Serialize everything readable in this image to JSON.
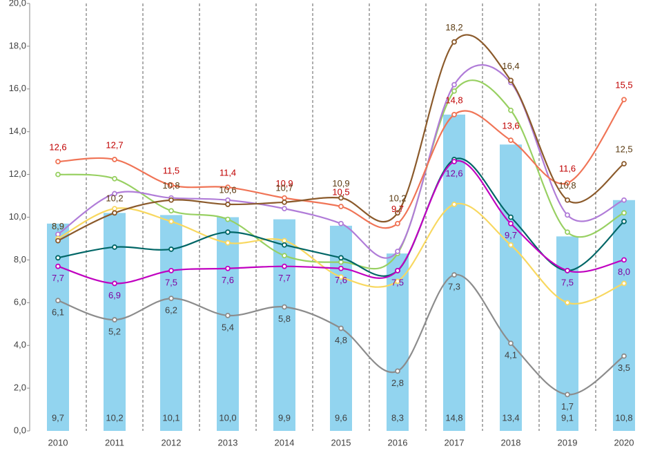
{
  "chart_data": {
    "type": "combo",
    "categories": [
      "2010",
      "2011",
      "2012",
      "2013",
      "2014",
      "2015",
      "2016",
      "2017",
      "2018",
      "2019",
      "2020"
    ],
    "ylim": [
      0,
      20
    ],
    "yticks": [
      {
        "value": 0,
        "label": "0,0"
      },
      {
        "value": 2,
        "label": "2,0"
      },
      {
        "value": 4,
        "label": "4,0"
      },
      {
        "value": 6,
        "label": "6,0"
      },
      {
        "value": 8,
        "label": "8,0"
      },
      {
        "value": 10,
        "label": "10,0"
      },
      {
        "value": 12,
        "label": "12,0"
      },
      {
        "value": 14,
        "label": "14,0"
      },
      {
        "value": 16,
        "label": "16,0"
      },
      {
        "value": 18,
        "label": "18,0"
      },
      {
        "value": 20,
        "label": "20,0"
      }
    ],
    "series": [
      {
        "type": "bar",
        "color": "#92d4ef",
        "label_color": "#404040",
        "values": [
          9.7,
          10.2,
          10.1,
          10.0,
          9.9,
          9.6,
          8.3,
          14.8,
          13.4,
          9.1,
          10.8
        ],
        "value_labels": [
          "9,7",
          "10,2",
          "10,1",
          "10,0",
          "9,9",
          "9,6",
          "8,3",
          "14,8",
          "13,4",
          "9,1",
          "10,8"
        ]
      },
      {
        "type": "line",
        "color": "#98d062",
        "values": [
          12.0,
          11.8,
          10.3,
          9.9,
          8.2,
          7.9,
          8.3,
          15.9,
          15.0,
          9.3,
          10.2
        ]
      },
      {
        "type": "line",
        "color": "#b07cd8",
        "values": [
          9.2,
          11.1,
          10.9,
          10.8,
          10.4,
          9.7,
          8.4,
          16.2,
          16.3,
          10.1,
          10.8
        ]
      },
      {
        "type": "line",
        "color": "#f8d860",
        "values": [
          9.0,
          10.4,
          9.8,
          8.8,
          8.9,
          7.2,
          7.0,
          10.6,
          8.7,
          6.0,
          6.9
        ]
      },
      {
        "type": "line",
        "color": "#006666",
        "values": [
          8.1,
          8.6,
          8.5,
          9.3,
          8.7,
          8.1,
          7.5,
          12.7,
          10.0,
          7.5,
          9.8
        ]
      },
      {
        "type": "line",
        "color": "#f07456",
        "label_color": "#c00000",
        "label_pos": "above",
        "values": [
          12.6,
          12.7,
          11.5,
          11.4,
          10.9,
          10.5,
          9.7,
          14.8,
          13.6,
          11.6,
          15.5
        ],
        "value_labels": [
          "12,6",
          "12,7",
          "11,5",
          "11,4",
          "10,9",
          "10,5",
          "9,7",
          "14,8",
          "13,6",
          "11,6",
          "15,5"
        ]
      },
      {
        "type": "line",
        "color": "#8b5a2b",
        "label_color": "#5a3a10",
        "label_pos": "above",
        "values": [
          8.9,
          10.2,
          10.8,
          10.6,
          10.7,
          10.9,
          10.2,
          18.2,
          16.4,
          10.8,
          12.5
        ],
        "value_labels": [
          "8,9",
          "10,2",
          "10,8",
          "10,6",
          "10,7",
          "10,9",
          "10,2",
          "18,2",
          "16,4",
          "10,8",
          "12,5"
        ]
      },
      {
        "type": "line",
        "color": "#c000c0",
        "label_color": "#8000a0",
        "label_pos": "below",
        "values": [
          7.7,
          6.9,
          7.5,
          7.6,
          7.7,
          7.6,
          7.5,
          12.6,
          9.7,
          7.5,
          8.0
        ],
        "value_labels": [
          "7,7",
          "6,9",
          "7,5",
          "7,6",
          "7,7",
          "7,6",
          "7,5",
          "12,6",
          "9,7",
          "7,5",
          "8,0"
        ]
      },
      {
        "type": "line",
        "color": "#8c8c8c",
        "label_color": "#404040",
        "label_pos": "below",
        "values": [
          6.1,
          5.2,
          6.2,
          5.4,
          5.8,
          4.8,
          2.8,
          7.3,
          4.1,
          1.7,
          3.5
        ],
        "value_labels": [
          "6,1",
          "5,2",
          "6,2",
          "5,4",
          "5,8",
          "4,8",
          "2,8",
          "7,3",
          "4,1",
          "1,7",
          "3,5"
        ]
      }
    ]
  }
}
